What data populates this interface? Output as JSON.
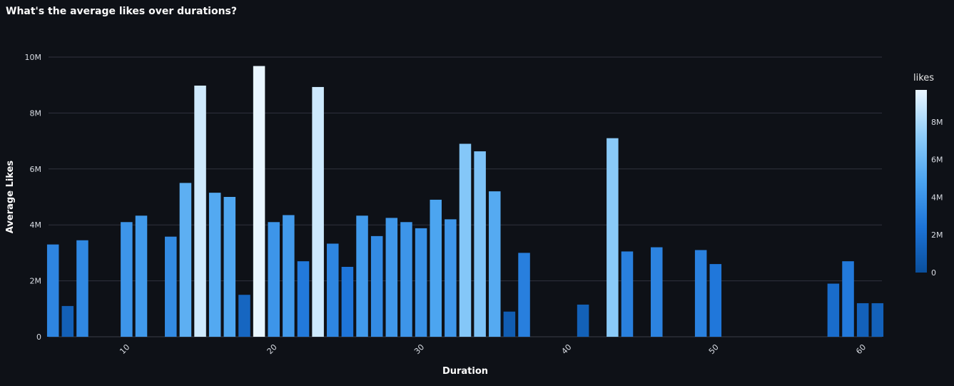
{
  "chart_data": {
    "type": "bar",
    "title": "What's the average likes over durations?",
    "xlabel": "Duration",
    "ylabel": "Average Likes",
    "xlim": [
      4.7,
      61.3
    ],
    "ylim": [
      0,
      10000000
    ],
    "x_ticks": [
      10,
      20,
      30,
      40,
      50,
      60
    ],
    "y_ticks": [
      0,
      2000000,
      4000000,
      6000000,
      8000000,
      10000000
    ],
    "y_tick_labels": [
      "0",
      "2M",
      "4M",
      "6M",
      "8M",
      "10M"
    ],
    "grid": true,
    "colorbar": {
      "title": "likes",
      "range": [
        0,
        9700000
      ],
      "ticks": [
        0,
        2000000,
        4000000,
        6000000,
        8000000
      ],
      "tick_labels": [
        "0",
        "2M",
        "4M",
        "6M",
        "8M"
      ],
      "placement": "right",
      "colors": [
        "#0a4f9c",
        "#1d74d8",
        "#4ba4f0",
        "#8fcdf9",
        "#eaf6ff"
      ]
    },
    "x": [
      5,
      6,
      7,
      10,
      11,
      13,
      14,
      15,
      16,
      17,
      18,
      19,
      20,
      21,
      22,
      23,
      24,
      25,
      26,
      27,
      28,
      29,
      30,
      31,
      32,
      33,
      34,
      35,
      36,
      37,
      41,
      43,
      44,
      46,
      49,
      50,
      58,
      59,
      60,
      61
    ],
    "values": [
      3300000,
      1100000,
      3450000,
      4100000,
      4330000,
      3580000,
      5500000,
      8980000,
      5150000,
      5000000,
      1500000,
      9680000,
      4100000,
      4350000,
      2700000,
      8930000,
      3330000,
      2500000,
      4330000,
      3600000,
      4250000,
      4100000,
      3880000,
      4900000,
      4200000,
      6900000,
      6630000,
      5200000,
      900000,
      3000000,
      1150000,
      7100000,
      3050000,
      3200000,
      3100000,
      2600000,
      1900000,
      2700000,
      1200000,
      1200000
    ]
  }
}
